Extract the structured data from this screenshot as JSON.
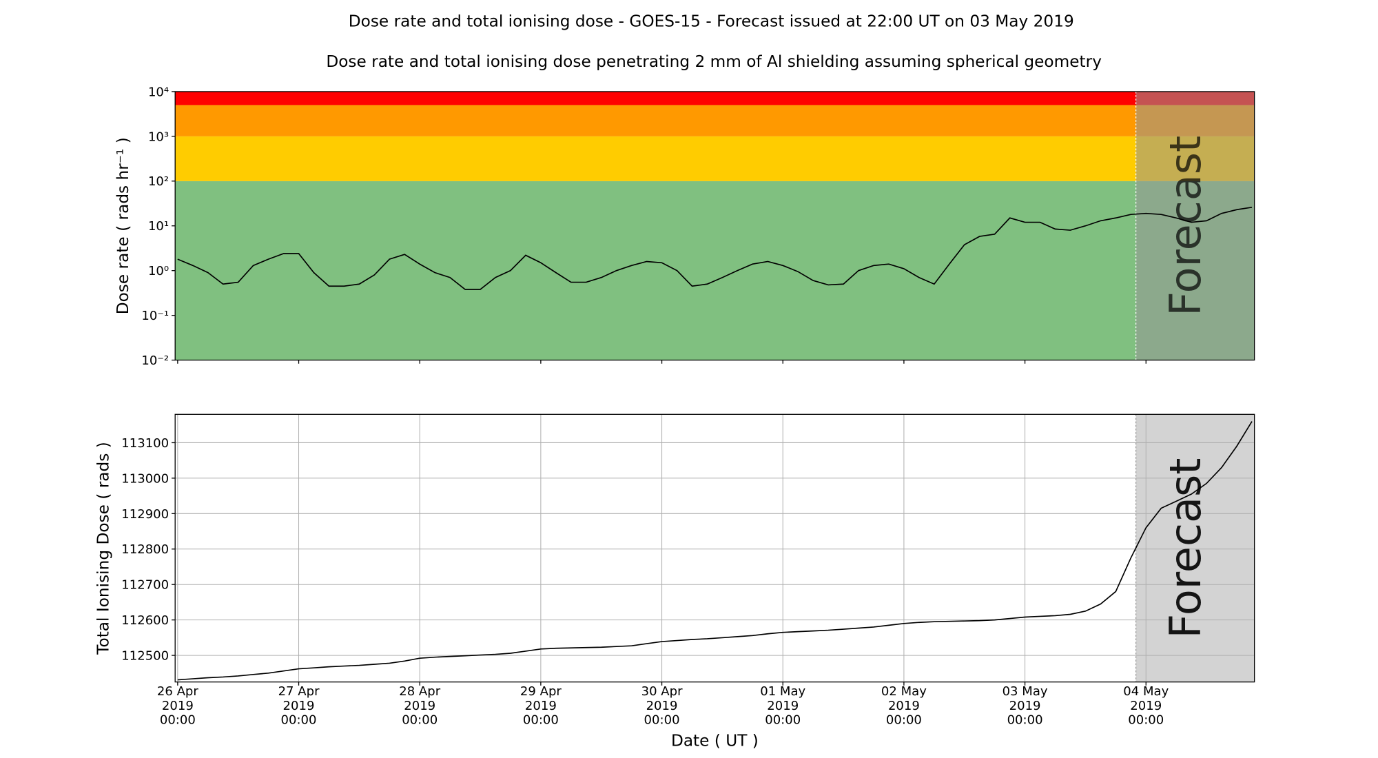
{
  "chart_data": [
    {
      "type": "line",
      "title": "Dose rate and total ionising dose - GOES-15 - Forecast issued at 22:00 UT on 03 May 2019",
      "subtitle": "Dose rate and total ionising dose penetrating 2 mm of Al shielding assuming spherical geometry",
      "ylabel": "Dose rate ( rads hr⁻¹ )",
      "log_y": true,
      "color": "#000000",
      "bands": [
        {
          "from": 0.01,
          "to": 100,
          "color": "#80c080"
        },
        {
          "from": 100,
          "to": 1000,
          "color": "#ffcc00"
        },
        {
          "from": 1000,
          "to": 5000,
          "color": "#ff9900"
        },
        {
          "from": 5000,
          "to": 10000,
          "color": "#ff0000"
        }
      ],
      "forecast_start": "2019-05-03T22:00",
      "annotation": "Forecast",
      "xlim": [
        "2019-04-25T23:30",
        "2019-05-04T21:30"
      ],
      "ylim": [
        0.01,
        10000
      ],
      "yticks": [
        {
          "value": 0.01,
          "label": "10⁻²"
        },
        {
          "value": 0.1,
          "label": "10⁻¹"
        },
        {
          "value": 1,
          "label": "10⁰"
        },
        {
          "value": 10,
          "label": "10¹"
        },
        {
          "value": 100,
          "label": "10²"
        },
        {
          "value": 1000,
          "label": "10³"
        },
        {
          "value": 10000,
          "label": "10⁴"
        }
      ],
      "xticks": [
        "2019-04-26T00:00",
        "2019-04-27T00:00",
        "2019-04-28T00:00",
        "2019-04-29T00:00",
        "2019-04-30T00:00",
        "2019-05-01T00:00",
        "2019-05-02T00:00",
        "2019-05-03T00:00",
        "2019-05-04T00:00"
      ],
      "x": [
        "2019-04-26T00:00",
        "2019-04-26T03:00",
        "2019-04-26T06:00",
        "2019-04-26T09:00",
        "2019-04-26T12:00",
        "2019-04-26T15:00",
        "2019-04-26T18:00",
        "2019-04-26T21:00",
        "2019-04-27T00:00",
        "2019-04-27T03:00",
        "2019-04-27T06:00",
        "2019-04-27T09:00",
        "2019-04-27T12:00",
        "2019-04-27T15:00",
        "2019-04-27T18:00",
        "2019-04-27T21:00",
        "2019-04-28T00:00",
        "2019-04-28T03:00",
        "2019-04-28T06:00",
        "2019-04-28T09:00",
        "2019-04-28T12:00",
        "2019-04-28T15:00",
        "2019-04-28T18:00",
        "2019-04-28T21:00",
        "2019-04-29T00:00",
        "2019-04-29T03:00",
        "2019-04-29T06:00",
        "2019-04-29T09:00",
        "2019-04-29T12:00",
        "2019-04-29T15:00",
        "2019-04-29T18:00",
        "2019-04-29T21:00",
        "2019-04-30T00:00",
        "2019-04-30T03:00",
        "2019-04-30T06:00",
        "2019-04-30T09:00",
        "2019-04-30T12:00",
        "2019-04-30T15:00",
        "2019-04-30T18:00",
        "2019-04-30T21:00",
        "2019-05-01T00:00",
        "2019-05-01T03:00",
        "2019-05-01T06:00",
        "2019-05-01T09:00",
        "2019-05-01T12:00",
        "2019-05-01T15:00",
        "2019-05-01T18:00",
        "2019-05-01T21:00",
        "2019-05-02T00:00",
        "2019-05-02T03:00",
        "2019-05-02T06:00",
        "2019-05-02T09:00",
        "2019-05-02T12:00",
        "2019-05-02T15:00",
        "2019-05-02T18:00",
        "2019-05-02T21:00",
        "2019-05-03T00:00",
        "2019-05-03T03:00",
        "2019-05-03T06:00",
        "2019-05-03T09:00",
        "2019-05-03T12:00",
        "2019-05-03T15:00",
        "2019-05-03T18:00",
        "2019-05-03T21:00",
        "2019-05-04T00:00",
        "2019-05-04T03:00",
        "2019-05-04T06:00",
        "2019-05-04T09:00",
        "2019-05-04T12:00",
        "2019-05-04T15:00",
        "2019-05-04T18:00",
        "2019-05-04T21:00"
      ],
      "values": [
        1.8,
        1.3,
        0.9,
        0.5,
        0.55,
        1.3,
        1.8,
        2.4,
        2.4,
        0.9,
        0.45,
        0.45,
        0.5,
        0.8,
        1.8,
        2.3,
        1.4,
        0.9,
        0.7,
        0.38,
        0.38,
        0.7,
        1.0,
        2.2,
        1.5,
        0.9,
        0.55,
        0.55,
        0.7,
        1.0,
        1.3,
        1.6,
        1.5,
        1.0,
        0.45,
        0.5,
        0.7,
        1.0,
        1.4,
        1.6,
        1.3,
        0.95,
        0.6,
        0.48,
        0.5,
        1.0,
        1.3,
        1.4,
        1.1,
        0.7,
        0.5,
        1.4,
        3.8,
        5.8,
        6.5,
        15,
        12,
        12,
        8.5,
        8.0,
        10,
        13,
        15,
        18,
        19,
        18,
        15,
        12,
        13,
        19,
        23,
        26
      ]
    },
    {
      "type": "line",
      "ylabel": "Total Ionising Dose ( rads )",
      "xlabel": "Date ( UT )",
      "grid": true,
      "color": "#000000",
      "forecast_start": "2019-05-03T22:00",
      "annotation": "Forecast",
      "forecast_color": "#d3d3d3",
      "xlim": [
        "2019-04-25T23:30",
        "2019-05-04T21:30"
      ],
      "ylim": [
        112425,
        113180
      ],
      "yticks": [
        112500,
        112600,
        112700,
        112800,
        112900,
        113000,
        113100
      ],
      "xticks": [
        {
          "value": "2019-04-26T00:00",
          "label": "26 Apr\n2019\n00:00"
        },
        {
          "value": "2019-04-27T00:00",
          "label": "27 Apr\n2019\n00:00"
        },
        {
          "value": "2019-04-28T00:00",
          "label": "28 Apr\n2019\n00:00"
        },
        {
          "value": "2019-04-29T00:00",
          "label": "29 Apr\n2019\n00:00"
        },
        {
          "value": "2019-04-30T00:00",
          "label": "30 Apr\n2019\n00:00"
        },
        {
          "value": "2019-05-01T00:00",
          "label": "01 May\n2019\n00:00"
        },
        {
          "value": "2019-05-02T00:00",
          "label": "02 May\n2019\n00:00"
        },
        {
          "value": "2019-05-03T00:00",
          "label": "03 May\n2019\n00:00"
        },
        {
          "value": "2019-05-04T00:00",
          "label": "04 May\n2019\n00:00"
        }
      ],
      "x": [
        "2019-04-26T00:00",
        "2019-04-26T03:00",
        "2019-04-26T06:00",
        "2019-04-26T09:00",
        "2019-04-26T12:00",
        "2019-04-26T15:00",
        "2019-04-26T18:00",
        "2019-04-26T21:00",
        "2019-04-27T00:00",
        "2019-04-27T03:00",
        "2019-04-27T06:00",
        "2019-04-27T09:00",
        "2019-04-27T12:00",
        "2019-04-27T15:00",
        "2019-04-27T18:00",
        "2019-04-27T21:00",
        "2019-04-28T00:00",
        "2019-04-28T03:00",
        "2019-04-28T06:00",
        "2019-04-28T09:00",
        "2019-04-28T12:00",
        "2019-04-28T15:00",
        "2019-04-28T18:00",
        "2019-04-28T21:00",
        "2019-04-29T00:00",
        "2019-04-29T03:00",
        "2019-04-29T06:00",
        "2019-04-29T09:00",
        "2019-04-29T12:00",
        "2019-04-29T15:00",
        "2019-04-29T18:00",
        "2019-04-29T21:00",
        "2019-04-30T00:00",
        "2019-04-30T03:00",
        "2019-04-30T06:00",
        "2019-04-30T09:00",
        "2019-04-30T12:00",
        "2019-04-30T15:00",
        "2019-04-30T18:00",
        "2019-04-30T21:00",
        "2019-05-01T00:00",
        "2019-05-01T03:00",
        "2019-05-01T06:00",
        "2019-05-01T09:00",
        "2019-05-01T12:00",
        "2019-05-01T15:00",
        "2019-05-01T18:00",
        "2019-05-01T21:00",
        "2019-05-02T00:00",
        "2019-05-02T03:00",
        "2019-05-02T06:00",
        "2019-05-02T09:00",
        "2019-05-02T12:00",
        "2019-05-02T15:00",
        "2019-05-02T18:00",
        "2019-05-02T21:00",
        "2019-05-03T00:00",
        "2019-05-03T03:00",
        "2019-05-03T06:00",
        "2019-05-03T09:00",
        "2019-05-03T12:00",
        "2019-05-03T15:00",
        "2019-05-03T18:00",
        "2019-05-03T21:00",
        "2019-05-04T00:00",
        "2019-05-04T03:00",
        "2019-05-04T06:00",
        "2019-05-04T09:00",
        "2019-05-04T12:00",
        "2019-05-04T15:00",
        "2019-05-04T18:00",
        "2019-05-04T21:00"
      ],
      "values": [
        112431,
        112434,
        112437,
        112439,
        112442,
        112446,
        112450,
        112456,
        112462,
        112465,
        112468,
        112470,
        112472,
        112475,
        112478,
        112484,
        112492,
        112495,
        112497,
        112499,
        112501,
        112503,
        112506,
        112512,
        112518,
        112520,
        112521,
        112522,
        112523,
        112525,
        112527,
        112533,
        112539,
        112542,
        112545,
        112547,
        112550,
        112553,
        112556,
        112561,
        112565,
        112567,
        112569,
        112571,
        112574,
        112577,
        112580,
        112585,
        112590,
        112593,
        112595,
        112596,
        112597,
        112598,
        112600,
        112604,
        112608,
        112610,
        112612,
        112616,
        112625,
        112645,
        112680,
        112775,
        112860,
        112915,
        112935,
        112955,
        112985,
        113030,
        113090,
        113160
      ]
    }
  ]
}
